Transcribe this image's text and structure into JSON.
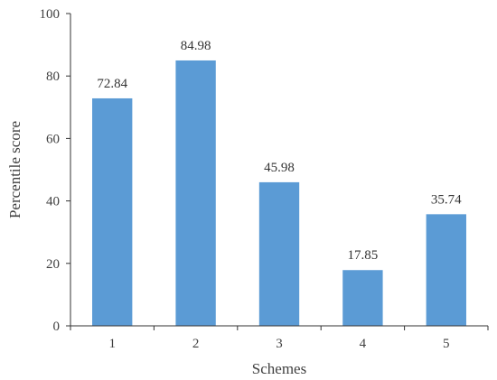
{
  "chart_data": {
    "type": "bar",
    "categories": [
      "1",
      "2",
      "3",
      "4",
      "5"
    ],
    "values": [
      72.84,
      84.98,
      45.98,
      17.85,
      35.74
    ],
    "data_labels": [
      "72.84",
      "84.98",
      "45.98",
      "17.85",
      "35.74"
    ],
    "xlabel": "Schemes",
    "ylabel": "Percentile score",
    "ylim": [
      0,
      100
    ],
    "yticks": [
      0,
      20,
      40,
      60,
      80,
      100
    ],
    "grid": false,
    "legend": "none",
    "bar_color": "#5b9bd5"
  }
}
